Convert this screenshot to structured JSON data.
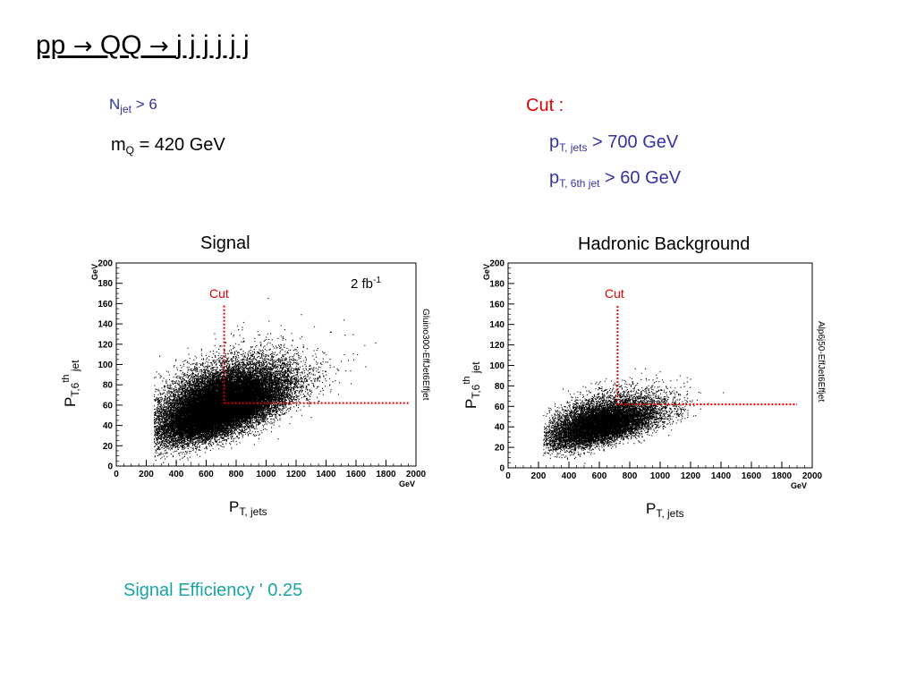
{
  "slide": {
    "title_pp": "pp",
    "title_arrow": "→",
    "title_qq": "QQ",
    "title_jets": "j j j j j j",
    "njet_main": "N",
    "njet_sub": "jet",
    "njet_rest": " >  6",
    "mq_main": "m",
    "mq_sub": "Q",
    "mq_rest": " = 420 GeV",
    "cut_heading": "Cut :",
    "cut1_main": "p",
    "cut1_sub": "T, jets",
    "cut1_rest": " > 700 GeV",
    "cut2_main": "p",
    "cut2_sub": "T, 6th jet",
    "cut2_rest": " > 60 GeV",
    "efficiency": "Signal Efficiency ' 0.25",
    "colors": {
      "cut_text": "#e00000",
      "cut_formula": "#3333a0",
      "efficiency": "#1aa5a5",
      "njet": "#3333a0"
    }
  },
  "plots": {
    "signal": {
      "title": "Signal",
      "xlabel_main": "P",
      "xlabel_sub": "T, jets",
      "ylabel_main": "P",
      "ylabel_sub1": "T,6",
      "ylabel_sup": "th",
      "ylabel_sub2": " jet",
      "x_unit": "GeV",
      "y_unit": "GeV",
      "cut_label": "Cut",
      "lumi_main": "2 fb",
      "lumi_sup": "-1",
      "side_label": "Gluino300-EffJet6Effjet"
    },
    "background": {
      "title": "Hadronic Background",
      "xlabel_main": "P",
      "xlabel_sub": "T, jets",
      "ylabel_main": "P",
      "ylabel_sub1": "T,6",
      "ylabel_sup": "th",
      "ylabel_sub2": " jet",
      "x_unit": "GeV",
      "y_unit": "GeV",
      "cut_label": "Cut",
      "side_label": "Alp6j50-EffJet6Effjet"
    }
  },
  "chart_data": [
    {
      "type": "scatter",
      "title": "Signal",
      "xlabel": "P_T, jets",
      "ylabel": "P_T,6th jet",
      "xlim": [
        0,
        2000
      ],
      "ylim": [
        0,
        200
      ],
      "xticks": [
        0,
        200,
        400,
        600,
        800,
        1000,
        1200,
        1400,
        1600,
        1800,
        2000
      ],
      "yticks": [
        0,
        20,
        40,
        60,
        80,
        100,
        120,
        140,
        160,
        180,
        200
      ],
      "cut": {
        "x": 720,
        "y": 62,
        "x_end": 1950,
        "y_top": 158
      },
      "density": {
        "x_center": 650,
        "x_spread": 220,
        "x_min": 250,
        "y_base": 25,
        "y_slope": 0.045,
        "y_spread": 22,
        "n_points": 30000
      },
      "annotation": "2 fb^-1",
      "grid": false,
      "marker_color": "#000000",
      "cut_color": "#e00000"
    },
    {
      "type": "scatter",
      "title": "Hadronic Background",
      "xlabel": "P_T, jets",
      "ylabel": "P_T,6th jet",
      "xlim": [
        0,
        2000
      ],
      "ylim": [
        0,
        200
      ],
      "xticks": [
        0,
        200,
        400,
        600,
        800,
        1000,
        1200,
        1400,
        1600,
        1800,
        2000
      ],
      "yticks": [
        0,
        20,
        40,
        60,
        80,
        100,
        120,
        140,
        160,
        180,
        200
      ],
      "cut": {
        "x": 720,
        "y": 62,
        "x_end": 1900,
        "y_top": 158
      },
      "density": {
        "x_center": 580,
        "x_spread": 190,
        "x_min": 230,
        "y_base": 20,
        "y_slope": 0.035,
        "y_spread": 15,
        "n_points": 12000
      },
      "grid": false,
      "marker_color": "#000000",
      "cut_color": "#e00000"
    }
  ]
}
